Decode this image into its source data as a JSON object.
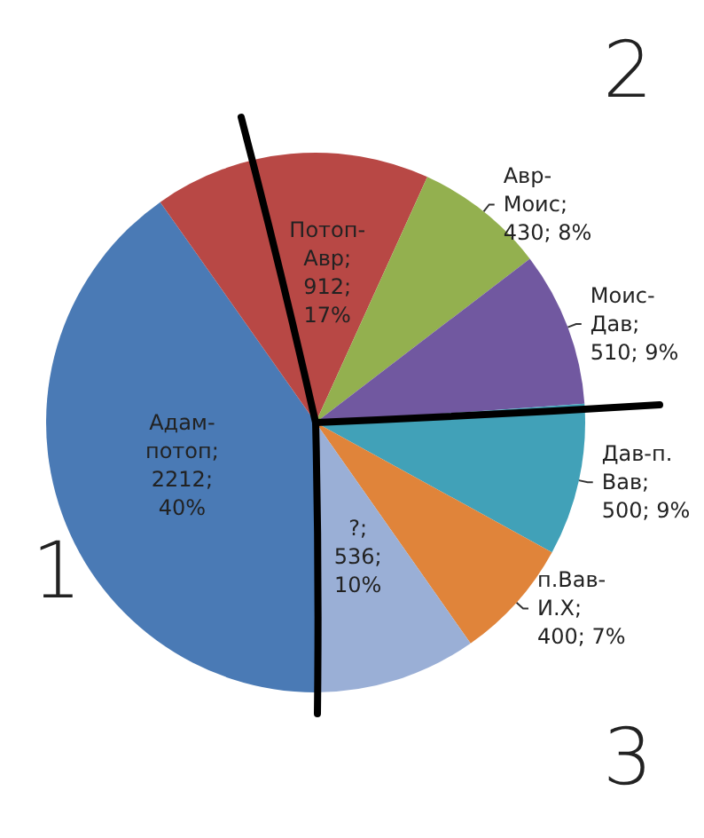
{
  "chart_data": {
    "type": "pie",
    "categories": [
      "Адам-потоп",
      "Потоп-Авр",
      "Авр-Моис",
      "Моис-Дав",
      "Дав-п. Вав",
      "п.Вав-И.Х",
      "?"
    ],
    "values": [
      2212,
      912,
      430,
      510,
      500,
      400,
      536
    ],
    "colors": [
      "#4a7ab5",
      "#b84845",
      "#93b04f",
      "#7158a0",
      "#41a1b8",
      "#e0843a",
      "#9aafd6"
    ],
    "value_labels": [
      "; 2212; 40%",
      "; 912; 17%",
      "; 430; 8%",
      "; 510; 9%",
      "; 500; 9%",
      "; 400; 7%",
      "; 536; 10%"
    ],
    "annotations": [
      "1",
      "2",
      "3"
    ],
    "legend": false
  }
}
